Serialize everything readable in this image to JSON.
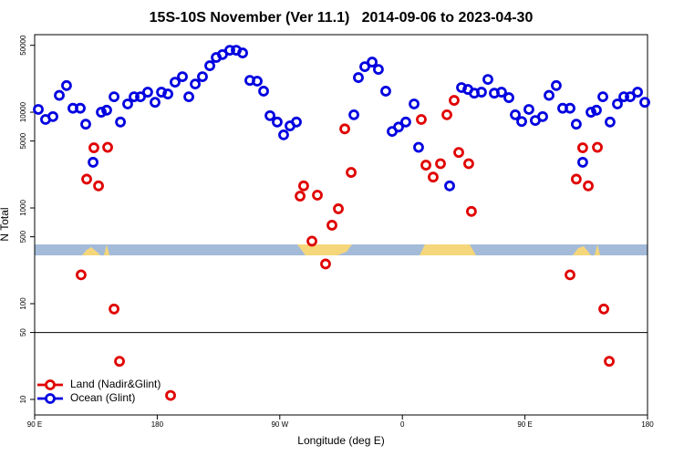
{
  "chart_data": {
    "type": "scatter",
    "title": "15S-10S November (Ver 11.1)   2014-09-06 to 2023-04-30",
    "x_label": "Longitude (deg E)",
    "y_label": "N Total",
    "xlim": [
      90,
      540
    ],
    "ylim": [
      6.88,
      64600
    ],
    "log_y": true,
    "legend": "lower left",
    "hline": 50,
    "xticks": [
      {
        "value": 90,
        "label": "90 E"
      },
      180,
      {
        "value": 270,
        "label": "90 W"
      },
      {
        "value": 360,
        "label": "0"
      },
      {
        "value": 450,
        "label": "90 E"
      },
      {
        "value": 540,
        "label": "180"
      }
    ],
    "yticks": [
      10,
      50,
      100,
      500,
      1000,
      5000,
      10000,
      50000
    ],
    "series": [
      {
        "name": "Land (Nadir&Glint)",
        "color": "#e00000",
        "x": [
          124.1,
          128.2,
          133.5,
          136.9,
          143.6,
          148.3,
          152.3,
          189.8,
          284.9,
          287.5,
          293.6,
          297.6,
          303.6,
          308.3,
          313.0,
          317.7,
          322.4,
          373.9,
          377.3,
          382.6,
          388.0,
          392.7,
          398.0,
          401.4,
          408.7,
          410.7,
          483.1,
          487.7,
          492.4,
          496.5,
          503.2,
          507.9,
          511.9
        ],
        "values": [
          200,
          2000,
          4250,
          1700,
          4300,
          88,
          25,
          11,
          1330,
          1700,
          450,
          1360,
          260,
          660,
          980,
          6700,
          2350,
          8400,
          2800,
          2100,
          2900,
          9400,
          13300,
          3800,
          2900,
          920,
          200,
          2000,
          4250,
          1700,
          4300,
          88,
          25
        ]
      },
      {
        "name": "Ocean (Glint)",
        "color": "#0000e0",
        "x": [
          92.7,
          98.0,
          103.4,
          108.1,
          113.4,
          118.1,
          123.5,
          127.5,
          132.9,
          138.9,
          142.9,
          148.3,
          153.0,
          158.3,
          163.0,
          167.7,
          173.0,
          178.4,
          183.1,
          187.8,
          193.1,
          198.5,
          203.2,
          207.9,
          213.2,
          218.6,
          223.3,
          227.9,
          233.3,
          238.0,
          242.7,
          248.0,
          253.4,
          258.1,
          262.8,
          268.1,
          272.8,
          277.5,
          282.2,
          324.4,
          327.7,
          332.4,
          337.8,
          342.4,
          347.8,
          352.5,
          357.2,
          362.5,
          368.6,
          371.9,
          394.7,
          403.4,
          408.1,
          412.8,
          418.1,
          422.8,
          427.5,
          432.8,
          438.2,
          442.9,
          447.6,
          452.9,
          457.6,
          463.0,
          467.7,
          473.0,
          477.7,
          483.1,
          487.7,
          492.4,
          498.5,
          502.5,
          507.2,
          512.5,
          517.9,
          522.6,
          527.3,
          532.7,
          538.0
        ],
        "values": [
          10700,
          8400,
          9000,
          15000,
          19000,
          11000,
          11000,
          7500,
          3000,
          10000,
          10500,
          14500,
          7900,
          12200,
          14500,
          14500,
          16200,
          12700,
          16200,
          15500,
          20600,
          23500,
          14500,
          19700,
          23500,
          30600,
          37300,
          40000,
          44400,
          44400,
          41600,
          21500,
          21100,
          16600,
          9200,
          7900,
          5800,
          7200,
          7900,
          9400,
          23000,
          29900,
          33400,
          28000,
          16600,
          6300,
          7000,
          7900,
          12200,
          4300,
          1700,
          18100,
          17300,
          15800,
          16200,
          22000,
          15800,
          16200,
          14200,
          9400,
          8000,
          10700,
          8200,
          9000,
          15000,
          19000,
          11000,
          11000,
          7500,
          3000,
          10000,
          10500,
          14500,
          7900,
          12200,
          14500,
          14500,
          16200,
          12700
        ]
      }
    ]
  }
}
